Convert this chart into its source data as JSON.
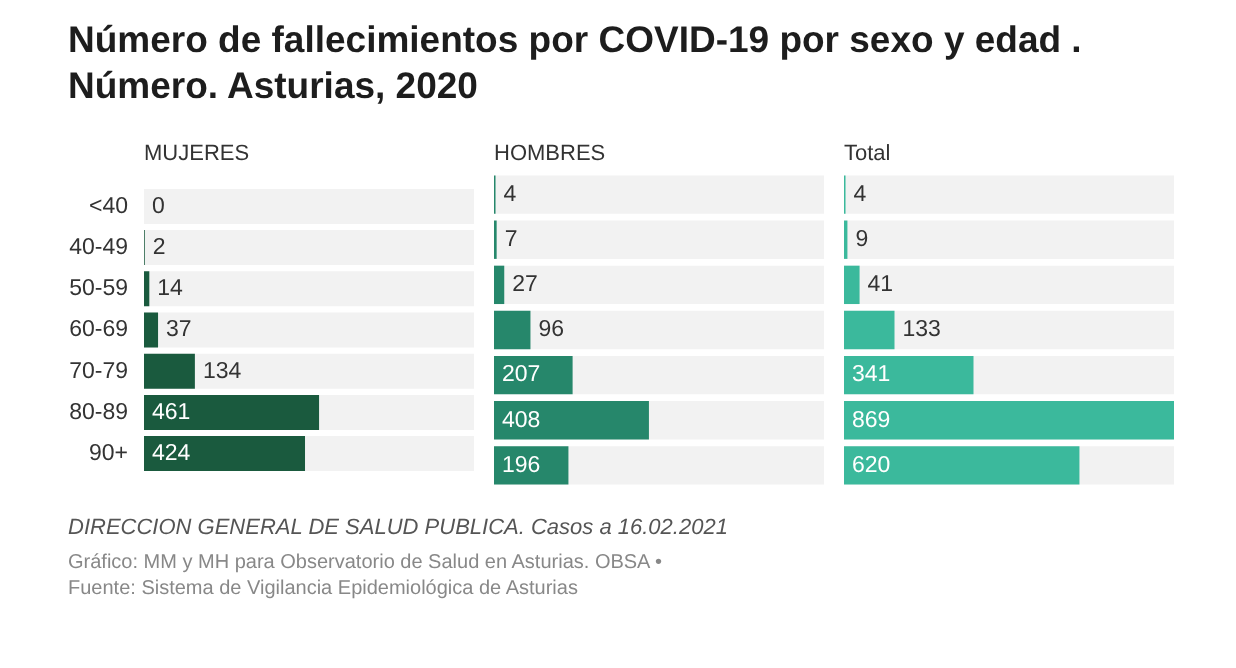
{
  "chart_data": [
    {
      "type": "bar",
      "orientation": "horizontal",
      "title": "Número de fallecimientos por COVID-19 por sexo y edad . Número. Asturias, 2020",
      "subtitle": "MUJERES",
      "categories": [
        "<40",
        "40-49",
        "50-59",
        "60-69",
        "70-79",
        "80-89",
        "90+"
      ],
      "values": [
        0,
        2,
        14,
        37,
        134,
        461,
        424
      ],
      "color": "#1a5a3e",
      "xlim": [
        0,
        869
      ],
      "data_labels": true,
      "tick_labels": "y",
      "annotations": [
        "DIRECCION GENERAL DE SALUD PUBLICA. Casos a 16.02.2021",
        "Gráfico: MM y MH para Observatorio de Salud en Asturias. OBSA •",
        "Fuente: Sistema de Vigilancia Epidemiológica de Asturias"
      ]
    },
    {
      "type": "bar",
      "orientation": "horizontal",
      "subtitle": "HOMBRES",
      "categories": [
        null,
        null,
        null,
        null,
        null,
        null,
        null
      ],
      "values": [
        4,
        7,
        27,
        96,
        207,
        408,
        196
      ],
      "color": "#26876b",
      "xlim": [
        0,
        869
      ],
      "data_labels": true,
      "tick_labels": false
    },
    {
      "type": "bar",
      "orientation": "horizontal",
      "subtitle": "Total",
      "categories": [
        null,
        null,
        null,
        null,
        null,
        null,
        null
      ],
      "values": [
        4,
        9,
        41,
        133,
        341,
        869,
        620
      ],
      "color": "#3bb99c",
      "xlim": [
        0,
        869
      ],
      "data_labels": true,
      "tick_labels": false
    }
  ]
}
